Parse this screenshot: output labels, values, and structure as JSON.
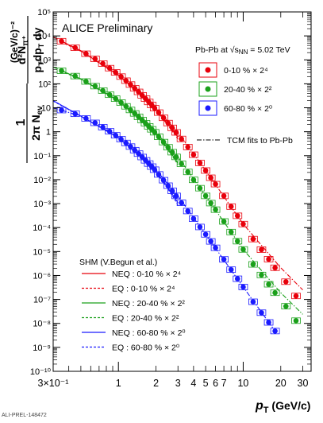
{
  "chart_data": {
    "type": "scatter",
    "banner": "ALICE Preliminary",
    "figure_id": "ALI-PREL-148472",
    "x_axis": {
      "label_main": "p",
      "label_sub": "T",
      "label_unit": "(GeV/c)",
      "scale": "log",
      "range": [
        0.3,
        35
      ],
      "tick_labels": [
        {
          "v": 0.3,
          "t": "3×10⁻¹"
        },
        {
          "v": 1,
          "t": "1"
        },
        {
          "v": 2,
          "t": "2"
        },
        {
          "v": 3,
          "t": "3"
        },
        {
          "v": 4,
          "t": "4"
        },
        {
          "v": 5,
          "t": "5"
        },
        {
          "v": 6,
          "t": "6"
        },
        {
          "v": 7,
          "t": "7"
        },
        {
          "v": 10,
          "t": "10"
        },
        {
          "v": 20,
          "t": "20"
        },
        {
          "v": 30,
          "t": "30"
        }
      ]
    },
    "y_axis": {
      "scale": "log",
      "range_exp": [
        -10,
        5
      ],
      "label_parts": {
        "left_1": "1",
        "left_2": "2π N",
        "left_2_sub": "ev",
        "main_num": "d²N",
        "main_num_sub": "π⁺",
        "main_den": "p",
        "main_den_sub1": "T",
        "main_den_mid": "dp",
        "main_den_sub2": "T",
        "main_den_end": "dy",
        "unit": "(GeV/c)⁻²"
      }
    },
    "legend_top": {
      "system": "Pb-Pb at √s",
      "system_sub": "NN",
      "system_end": " = 5.02 TeV",
      "entries": [
        {
          "label": "0-10 % × 2⁴",
          "color": "#e8000b"
        },
        {
          "label": "20-40 % × 2²",
          "color": "#1aa01a"
        },
        {
          "label": "60-80 % × 2⁰",
          "color": "#1a1aff"
        }
      ],
      "fit_label": "TCM fits to Pb-Pb"
    },
    "legend_shm": {
      "title": "SHM (V.Begun et al.)",
      "entries": [
        {
          "label": "NEQ :  0-10 % × 2⁴",
          "color": "#e8000b",
          "dash": "solid"
        },
        {
          "label": "EQ :  0-10 % × 2⁴",
          "color": "#e8000b",
          "dash": "dash"
        },
        {
          "label": "NEQ : 20-40 % × 2²",
          "color": "#1aa01a",
          "dash": "solid"
        },
        {
          "label": "EQ : 20-40 % × 2²",
          "color": "#1aa01a",
          "dash": "dash"
        },
        {
          "label": "NEQ : 60-80 % × 2⁰",
          "color": "#1a1aff",
          "dash": "solid"
        },
        {
          "label": "EQ : 60-80 % × 2⁰",
          "color": "#1a1aff",
          "dash": "dash"
        }
      ]
    },
    "series": [
      {
        "name": "0-10 % × 2⁴",
        "color": "#e8000b",
        "x": [
          0.35,
          0.45,
          0.55,
          0.65,
          0.75,
          0.85,
          0.95,
          1.05,
          1.15,
          1.25,
          1.35,
          1.45,
          1.55,
          1.65,
          1.75,
          1.85,
          1.95,
          2.1,
          2.3,
          2.5,
          2.7,
          2.9,
          3.2,
          3.6,
          4.0,
          4.5,
          5.0,
          5.5,
          6.0,
          7.0,
          8.0,
          9.0,
          10.0,
          12.0,
          14.0,
          16.0,
          18.0,
          22.0,
          26.5
        ],
        "y": [
          6000,
          3200,
          1800,
          1100,
          700,
          450,
          300,
          200,
          135,
          93,
          65,
          46,
          33,
          24,
          17.5,
          13,
          9.6,
          6.3,
          3.8,
          2.3,
          1.45,
          0.94,
          0.5,
          0.23,
          0.11,
          0.05,
          0.024,
          0.012,
          0.0065,
          0.0021,
          0.00075,
          0.00031,
          0.00014,
          3.3e-05,
          1.2e-05,
          4.8e-06,
          2.1e-06,
          5.5e-07,
          1.4e-07
        ]
      },
      {
        "name": "20-40 % × 2²",
        "color": "#1aa01a",
        "x": [
          0.35,
          0.45,
          0.55,
          0.65,
          0.75,
          0.85,
          0.95,
          1.05,
          1.15,
          1.25,
          1.35,
          1.45,
          1.55,
          1.65,
          1.75,
          1.85,
          1.95,
          2.1,
          2.3,
          2.5,
          2.7,
          2.9,
          3.2,
          3.6,
          4.0,
          4.5,
          5.0,
          5.5,
          6.0,
          7.0,
          8.0,
          9.0,
          10.0,
          12.0,
          14.0,
          16.0,
          18.0,
          22.0,
          26.5
        ],
        "y": [
          350,
          210,
          125,
          80,
          52,
          35,
          24,
          16.5,
          11.5,
          8.1,
          5.8,
          4.2,
          3.05,
          2.25,
          1.68,
          1.26,
          0.95,
          0.62,
          0.37,
          0.225,
          0.14,
          0.089,
          0.046,
          0.021,
          0.0098,
          0.0044,
          0.0021,
          0.00105,
          0.00056,
          0.00018,
          6.5e-05,
          2.7e-05,
          1.22e-05,
          2.9e-06,
          1.05e-06,
          4.3e-07,
          1.9e-07,
          5.2e-08,
          1.3e-08
        ]
      },
      {
        "name": "60-80 % × 2⁰",
        "color": "#1a1aff",
        "x": [
          0.35,
          0.45,
          0.55,
          0.65,
          0.75,
          0.85,
          0.95,
          1.05,
          1.15,
          1.25,
          1.35,
          1.45,
          1.55,
          1.65,
          1.75,
          1.85,
          1.95,
          2.1,
          2.3,
          2.5,
          2.7,
          2.9,
          3.2,
          3.6,
          4.0,
          4.5,
          5.0,
          5.5,
          6.0,
          7.0,
          8.0,
          9.0,
          10.0,
          12.0,
          14.0,
          16.0,
          18.0
        ],
        "y": [
          8,
          5.6,
          3.6,
          2.35,
          1.55,
          1.04,
          0.71,
          0.49,
          0.34,
          0.24,
          0.17,
          0.122,
          0.088,
          0.064,
          0.047,
          0.035,
          0.026,
          0.0165,
          0.0095,
          0.0056,
          0.0034,
          0.0021,
          0.00108,
          0.00049,
          0.000235,
          0.000106,
          5.2e-05,
          2.65e-05,
          1.43e-05,
          4.7e-06,
          1.75e-06,
          7.3e-07,
          3.3e-07,
          8e-08,
          2.8e-08,
          1.1e-08,
          4.8e-09
        ]
      }
    ],
    "fits": {
      "tcm": [
        {
          "color": "#e8000b",
          "x": [
            0.3,
            0.5,
            1,
            2,
            3,
            5,
            10,
            20,
            30
          ],
          "y": [
            9000,
            2400,
            230,
            9.6,
            0.94,
            0.024,
            0.00014,
            2.1e-06,
            2.5e-07
          ]
        },
        {
          "color": "#1aa01a",
          "x": [
            0.3,
            0.5,
            1,
            2,
            3,
            5,
            10,
            20,
            30
          ],
          "y": [
            500,
            160,
            20,
            0.95,
            0.089,
            0.0021,
            1.22e-05,
            1.9e-07,
            2.4e-08
          ]
        },
        {
          "color": "#1a1aff",
          "x": [
            0.3,
            0.5,
            1,
            2,
            3,
            5,
            10,
            18
          ],
          "y": [
            10,
            4.5,
            0.58,
            0.026,
            0.0021,
            5.2e-05,
            3.3e-07,
            4.8e-09
          ]
        }
      ],
      "shm_neq": [
        {
          "color": "#e8000b",
          "x": [
            0.35,
            0.5,
            1,
            1.5,
            2,
            2.5,
            3
          ],
          "y": [
            6000,
            2400,
            230,
            40,
            9.0,
            2.0,
            0.6
          ]
        },
        {
          "color": "#1aa01a",
          "x": [
            0.35,
            0.5,
            1,
            1.5,
            2,
            2.5,
            3
          ],
          "y": [
            350,
            160,
            20,
            3.6,
            0.85,
            0.19,
            0.05
          ]
        },
        {
          "color": "#1a1aff",
          "x": [
            0.3,
            0.5,
            1,
            1.5,
            2,
            2.5,
            3
          ],
          "y": [
            20,
            4.5,
            0.58,
            0.1,
            0.022,
            0.0045,
            0.0011
          ]
        }
      ],
      "shm_eq": [
        {
          "color": "#e8000b",
          "x": [
            0.35,
            0.5,
            1,
            1.5,
            2,
            2.5,
            3
          ],
          "y": [
            5500,
            2300,
            225,
            38,
            8.3,
            1.8,
            0.5
          ]
        },
        {
          "color": "#1aa01a",
          "x": [
            0.35,
            0.5,
            1,
            1.5,
            2,
            2.5,
            3
          ],
          "y": [
            330,
            155,
            19.5,
            3.4,
            0.78,
            0.17,
            0.043
          ]
        },
        {
          "color": "#1a1aff",
          "x": [
            0.3,
            0.5,
            1,
            1.5,
            2,
            2.5,
            3
          ],
          "y": [
            19,
            4.4,
            0.56,
            0.095,
            0.02,
            0.004,
            0.0009
          ]
        }
      ]
    }
  }
}
